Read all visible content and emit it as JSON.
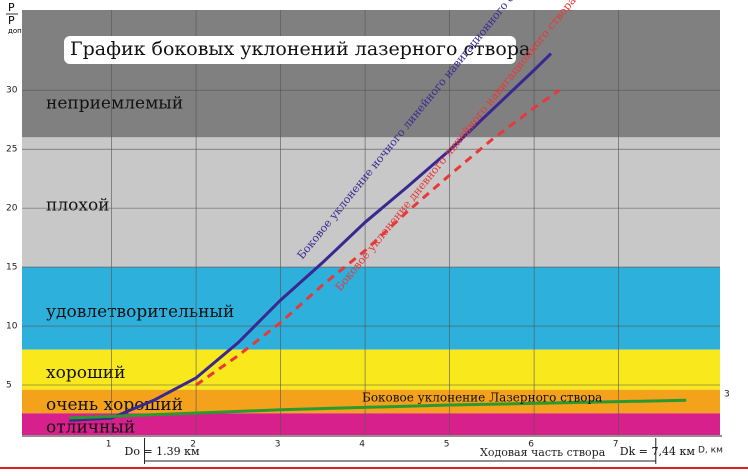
{
  "chart_data": {
    "type": "line",
    "title": "График боковых уклонений лазерного створа",
    "y_label": "P",
    "y_label_denominator": "P",
    "y_label_sub": "доп",
    "x_label": "D, км",
    "xlim": [
      -0.06,
      8.2
    ],
    "ylim": [
      0.76,
      36.8
    ],
    "xticks": [
      1,
      2,
      3,
      4,
      5,
      6,
      7
    ],
    "yticks": [
      5,
      10,
      15,
      20,
      25,
      30
    ],
    "grid": true,
    "zones": [
      {
        "label": "неприемлемый",
        "from": 26,
        "to": 36.8,
        "color": "#808080"
      },
      {
        "label": "плохой",
        "from": 15,
        "to": 26,
        "color": "#c8c8c8"
      },
      {
        "label": "удовлетворительный",
        "from": 8,
        "to": 15,
        "color": "#2eb0dc"
      },
      {
        "label": "хороший",
        "from": 4.6,
        "to": 8,
        "color": "#f8e81c"
      },
      {
        "label": "очень хороший",
        "from": 2.6,
        "to": 4.6,
        "color": "#f4a21c"
      },
      {
        "label": "отличный",
        "from": 0.76,
        "to": 2.6,
        "color": "#d8208c"
      }
    ],
    "series": [
      {
        "name": "Боковое уклонение ночного линейного навигационного створа “Севастопольский”",
        "color": "#3a2890",
        "dash": false,
        "x": [
          0.5,
          1,
          1.5,
          2,
          2.5,
          3,
          3.5,
          4,
          4.5,
          5,
          5.5,
          6,
          6.2
        ],
        "values": [
          2.0,
          2.2,
          3.7,
          5.6,
          8.6,
          12.2,
          15.4,
          18.8,
          21.8,
          24.9,
          28.3,
          31.7,
          33.1
        ]
      },
      {
        "name": "Боковое уклонение дневного линейного навигационного створа “Севастопольский”",
        "color": "#e83838",
        "dash": true,
        "x": [
          2,
          2.5,
          3,
          3.5,
          4,
          4.5,
          5,
          5.5,
          6,
          6.3
        ],
        "values": [
          5.0,
          7.5,
          10.3,
          13.5,
          16.4,
          19.7,
          22.8,
          25.8,
          28.5,
          30.0
        ]
      },
      {
        "name": "Боковое уклонение Лазерного створа",
        "color": "#2a9a30",
        "dash": false,
        "x": [
          0.5,
          3,
          5,
          7.8
        ],
        "values": [
          2.2,
          2.9,
          3.3,
          3.7
        ]
      }
    ],
    "markers": [
      {
        "value": 1.39,
        "label": "Do = 1.39 км"
      },
      {
        "value": 7.44,
        "label": "Dk = 7,44 км"
      }
    ],
    "range_label": "Ходовая часть створа",
    "side_note": "3"
  }
}
